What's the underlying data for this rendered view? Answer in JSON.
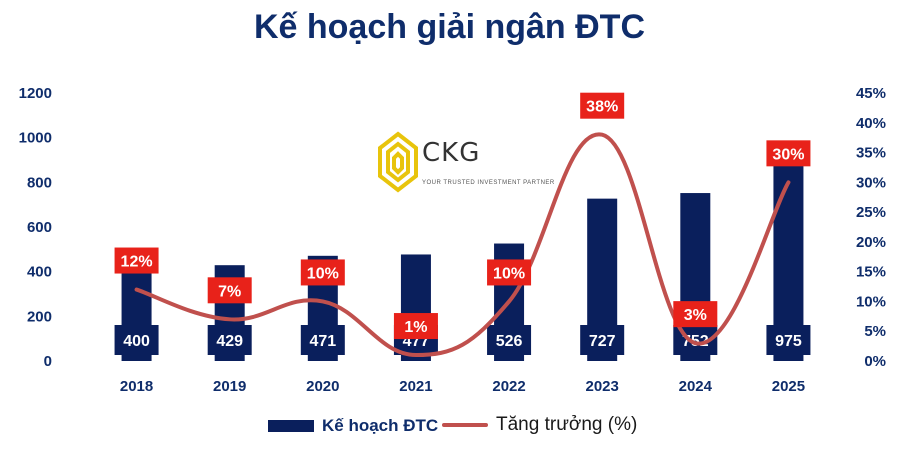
{
  "chart_data": {
    "type": "bar",
    "title": "Kế hoạch giải ngân ĐTC",
    "categories": [
      "2018",
      "2019",
      "2020",
      "2021",
      "2022",
      "2023",
      "2024",
      "2025"
    ],
    "series": [
      {
        "name": "Kế hoạch ĐTC",
        "type": "bar",
        "axis": "left",
        "values": [
          400,
          429,
          471,
          477,
          526,
          727,
          752,
          975
        ],
        "labels": [
          "400",
          "429",
          "471",
          "477",
          "526",
          "727",
          "752",
          "975"
        ],
        "color": "#0a1f5c"
      },
      {
        "name": "Tăng trưởng (%)",
        "type": "line",
        "axis": "right",
        "values": [
          12,
          7,
          10,
          1,
          10,
          38,
          3,
          30
        ],
        "labels": [
          "12%",
          "7%",
          "10%",
          "1%",
          "10%",
          "38%",
          "3%",
          "30%"
        ],
        "color": "#c0504d"
      }
    ],
    "y_left": {
      "ylim": [
        0,
        1200
      ],
      "ticks": [
        "0",
        "200",
        "400",
        "600",
        "800",
        "1000",
        "1200"
      ]
    },
    "y_right": {
      "ylim": [
        0,
        45
      ],
      "ticks": [
        "0%",
        "5%",
        "10%",
        "15%",
        "20%",
        "25%",
        "30%",
        "35%",
        "40%",
        "45%"
      ]
    },
    "grid": false,
    "legend_position": "bottom"
  },
  "logo": {
    "name": "CKG",
    "tagline": "YOUR TRUSTED INVESTMENT PARTNER"
  },
  "colors": {
    "title": "#0f2d6b",
    "bar": "#0a1f5c",
    "line": "#c0504d",
    "label_box": "#e8221a"
  }
}
